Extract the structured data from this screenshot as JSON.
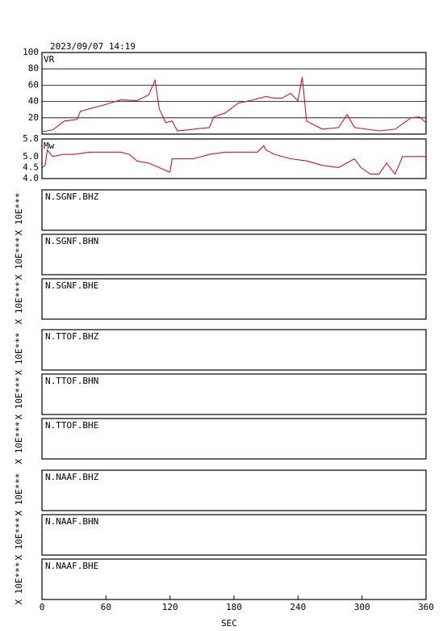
{
  "title": "2023/09/07 14:19",
  "chart_data": [
    {
      "type": "line",
      "label": "VR",
      "color": "#d0103a",
      "xlim": [
        0,
        360
      ],
      "ylim": [
        0,
        100
      ],
      "yticks": [
        20,
        40,
        60,
        80,
        100
      ],
      "grid": true,
      "x": [
        0,
        10,
        21,
        33,
        36,
        59,
        74,
        89,
        100,
        106,
        110,
        116,
        122,
        127,
        142,
        157,
        161,
        172,
        184,
        195,
        210,
        218,
        225,
        233,
        240,
        244,
        248,
        263,
        278,
        286,
        293,
        316,
        331,
        346,
        354,
        360
      ],
      "values": [
        3,
        5,
        16,
        18,
        28,
        36,
        42,
        41,
        48,
        66,
        31,
        14,
        16,
        4,
        6,
        8,
        21,
        26,
        38,
        41,
        46,
        44,
        44,
        50,
        41,
        70,
        16,
        6,
        8,
        24,
        8,
        4,
        6,
        20,
        21,
        14
      ]
    },
    {
      "type": "line",
      "label": "Mw",
      "color": "#d0103a",
      "xlim": [
        0,
        360
      ],
      "ylim": [
        4.0,
        5.8
      ],
      "yticks": [
        {
          "value": 4.0,
          "label": "4.0"
        },
        4.5,
        {
          "value": 5.0,
          "label": "5.0"
        },
        5.8
      ],
      "grid": false,
      "x": [
        0,
        3,
        5,
        10,
        20,
        30,
        45,
        60,
        74,
        82,
        89,
        100,
        110,
        119,
        120,
        122,
        142,
        157,
        172,
        187,
        202,
        208,
        210,
        218,
        233,
        248,
        263,
        278,
        293,
        299,
        308,
        316,
        323,
        331,
        338,
        346,
        360
      ],
      "values": [
        4.5,
        4.6,
        5.3,
        5.0,
        5.1,
        5.1,
        5.2,
        5.2,
        5.2,
        5.1,
        4.8,
        4.7,
        4.5,
        4.3,
        4.3,
        4.9,
        4.9,
        5.1,
        5.2,
        5.2,
        5.2,
        5.5,
        5.3,
        5.1,
        4.9,
        4.8,
        4.6,
        4.5,
        4.9,
        4.5,
        4.2,
        4.2,
        4.7,
        4.2,
        5.0,
        5.0,
        5.0
      ]
    }
  ],
  "traces": [
    {
      "label": "N.SGNF.BHZ",
      "scale": "X 10E***"
    },
    {
      "label": "N.SGNF.BHN",
      "scale": "X 10E***"
    },
    {
      "label": "N.SGNF.BHE",
      "scale": "X 10E***"
    },
    {
      "label": "N.TTOF.BHZ",
      "scale": "X 10E***"
    },
    {
      "label": "N.TTOF.BHN",
      "scale": "X 10E***"
    },
    {
      "label": "N.TTOF.BHE",
      "scale": "X 10E***"
    },
    {
      "label": "N.NAAF.BHZ",
      "scale": "X 10E***"
    },
    {
      "label": "N.NAAF.BHN",
      "scale": "X 10E***"
    },
    {
      "label": "N.NAAF.BHE",
      "scale": "X 10E***"
    }
  ],
  "time_axis": {
    "label": "SEC",
    "xlim": [
      0,
      360
    ],
    "xticks": [
      0,
      60,
      120,
      180,
      240,
      300,
      360
    ]
  }
}
